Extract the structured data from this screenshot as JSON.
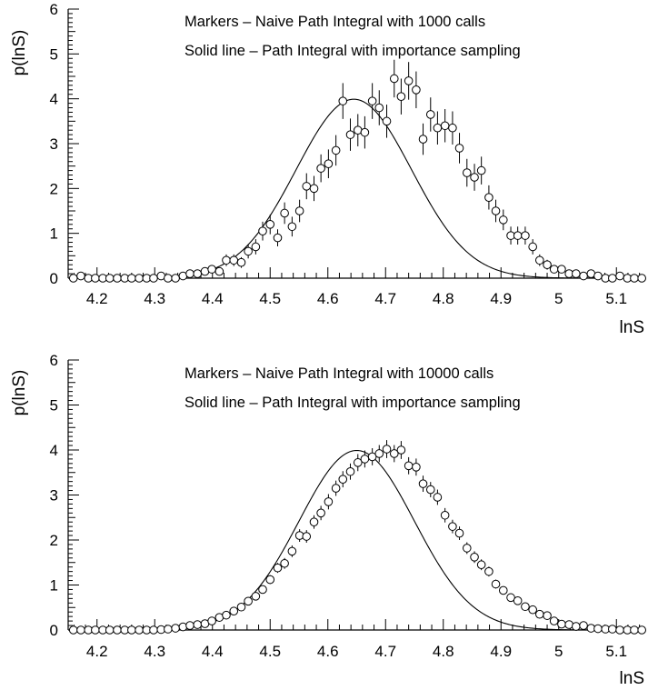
{
  "chart_data": [
    {
      "type": "scatter",
      "panel": "top",
      "xlabel": "lnS",
      "ylabel": "p(lnS)",
      "xlim": [
        4.15,
        5.15
      ],
      "ylim": [
        0,
        6
      ],
      "x_ticks": [
        "4.2",
        "4.3",
        "4.4",
        "4.5",
        "4.6",
        "4.7",
        "4.8",
        "4.9",
        "5",
        "5.1"
      ],
      "y_ticks": [
        "0",
        "1",
        "2",
        "3",
        "4",
        "5",
        "6"
      ],
      "annotations": [
        "Markers  –  Naive Path Integral with 1000 calls",
        "Solid line – Path Integral with importance sampling"
      ],
      "curve": {
        "type": "gaussian",
        "mean": 4.645,
        "sigma": 0.1,
        "peak": 3.99
      },
      "series": [
        {
          "style": "markers",
          "x": [
            4.159,
            4.172,
            4.185,
            4.197,
            4.21,
            4.222,
            4.235,
            4.248,
            4.26,
            4.273,
            4.286,
            4.298,
            4.311,
            4.323,
            4.336,
            4.349,
            4.361,
            4.374,
            4.387,
            4.399,
            4.412,
            4.424,
            4.437,
            4.45,
            4.462,
            4.475,
            4.487,
            4.5,
            4.513,
            4.525,
            4.538,
            4.551,
            4.563,
            4.576,
            4.588,
            4.601,
            4.614,
            4.626,
            4.639,
            4.652,
            4.664,
            4.677,
            4.689,
            4.702,
            4.715,
            4.727,
            4.74,
            4.753,
            4.765,
            4.778,
            4.79,
            4.803,
            4.816,
            4.828,
            4.841,
            4.854,
            4.866,
            4.879,
            4.891,
            4.904,
            4.917,
            4.929,
            4.942,
            4.955,
            4.967,
            4.98,
            4.992,
            5.005,
            5.018,
            5.03,
            5.043,
            5.056,
            5.068,
            5.081,
            5.093,
            5.106,
            5.119,
            5.131,
            5.144
          ],
          "y": [
            0.0,
            0.05,
            0.0,
            0.0,
            0.0,
            0.0,
            0.0,
            0.0,
            0.0,
            0.0,
            0.0,
            0.0,
            0.05,
            0.0,
            0.0,
            0.05,
            0.1,
            0.1,
            0.15,
            0.2,
            0.15,
            0.4,
            0.4,
            0.35,
            0.6,
            0.7,
            1.05,
            1.2,
            0.9,
            1.45,
            1.15,
            1.5,
            2.05,
            2.0,
            2.45,
            2.55,
            2.85,
            3.95,
            3.2,
            3.3,
            3.25,
            3.95,
            3.8,
            3.5,
            4.45,
            4.05,
            4.4,
            4.2,
            3.1,
            3.65,
            3.35,
            3.4,
            3.35,
            2.9,
            2.35,
            2.25,
            2.4,
            1.8,
            1.5,
            1.3,
            0.95,
            0.95,
            0.95,
            0.7,
            0.4,
            0.3,
            0.2,
            0.2,
            0.1,
            0.1,
            0.05,
            0.1,
            0.05,
            0.0,
            0.0,
            0.05,
            0.0,
            0.0,
            0.0
          ],
          "errors": [
            0.02,
            0.05,
            0.02,
            0.02,
            0.02,
            0.02,
            0.02,
            0.02,
            0.02,
            0.02,
            0.02,
            0.02,
            0.05,
            0.02,
            0.02,
            0.05,
            0.07,
            0.07,
            0.08,
            0.09,
            0.08,
            0.13,
            0.13,
            0.12,
            0.16,
            0.17,
            0.21,
            0.22,
            0.19,
            0.24,
            0.22,
            0.25,
            0.29,
            0.28,
            0.31,
            0.32,
            0.34,
            0.4,
            0.36,
            0.36,
            0.36,
            0.4,
            0.39,
            0.37,
            0.42,
            0.4,
            0.42,
            0.41,
            0.35,
            0.38,
            0.37,
            0.37,
            0.37,
            0.34,
            0.31,
            0.3,
            0.31,
            0.27,
            0.25,
            0.23,
            0.2,
            0.2,
            0.2,
            0.17,
            0.13,
            0.11,
            0.09,
            0.09,
            0.07,
            0.07,
            0.05,
            0.07,
            0.05,
            0.02,
            0.02,
            0.05,
            0.02,
            0.02,
            0.02
          ]
        }
      ]
    },
    {
      "type": "scatter",
      "panel": "bottom",
      "xlabel": "lnS",
      "ylabel": "p(lnS)",
      "xlim": [
        4.15,
        5.15
      ],
      "ylim": [
        0,
        6
      ],
      "x_ticks": [
        "4.2",
        "4.3",
        "4.4",
        "4.5",
        "4.6",
        "4.7",
        "4.8",
        "4.9",
        "5",
        "5.1"
      ],
      "y_ticks": [
        "0",
        "1",
        "2",
        "3",
        "4",
        "5",
        "6"
      ],
      "annotations": [
        "Markers  –  Naive Path Integral with 10000 calls",
        "Solid line – Path Integral with importance sampling"
      ],
      "curve": {
        "type": "gaussian",
        "mean": 4.65,
        "sigma": 0.1,
        "peak": 3.99
      },
      "series": [
        {
          "style": "markers",
          "x": [
            4.159,
            4.172,
            4.185,
            4.197,
            4.21,
            4.222,
            4.235,
            4.248,
            4.26,
            4.273,
            4.286,
            4.298,
            4.311,
            4.323,
            4.336,
            4.349,
            4.361,
            4.374,
            4.387,
            4.399,
            4.412,
            4.424,
            4.437,
            4.45,
            4.462,
            4.475,
            4.487,
            4.5,
            4.513,
            4.525,
            4.538,
            4.551,
            4.563,
            4.576,
            4.588,
            4.601,
            4.614,
            4.626,
            4.639,
            4.652,
            4.664,
            4.677,
            4.689,
            4.702,
            4.715,
            4.727,
            4.74,
            4.753,
            4.765,
            4.778,
            4.79,
            4.803,
            4.816,
            4.828,
            4.841,
            4.854,
            4.866,
            4.879,
            4.891,
            4.904,
            4.917,
            4.929,
            4.942,
            4.955,
            4.967,
            4.98,
            4.992,
            5.005,
            5.018,
            5.03,
            5.043,
            5.056,
            5.068,
            5.081,
            5.093,
            5.106,
            5.119,
            5.131,
            5.144
          ],
          "y": [
            0.0,
            0.0,
            0.0,
            0.0,
            0.0,
            0.0,
            0.0,
            0.0,
            0.0,
            0.0,
            0.0,
            0.0,
            0.01,
            0.02,
            0.04,
            0.07,
            0.1,
            0.12,
            0.14,
            0.2,
            0.28,
            0.33,
            0.42,
            0.51,
            0.64,
            0.75,
            0.9,
            1.12,
            1.38,
            1.48,
            1.75,
            2.1,
            2.08,
            2.4,
            2.6,
            2.85,
            3.15,
            3.35,
            3.52,
            3.72,
            3.8,
            3.85,
            3.92,
            4.02,
            3.92,
            4.0,
            3.65,
            3.62,
            3.25,
            3.12,
            2.95,
            2.55,
            2.3,
            2.15,
            1.82,
            1.62,
            1.45,
            1.3,
            1.02,
            0.88,
            0.72,
            0.65,
            0.52,
            0.45,
            0.35,
            0.32,
            0.2,
            0.13,
            0.12,
            0.08,
            0.1,
            0.04,
            0.03,
            0.02,
            0.02,
            0.0,
            0.0,
            0.0,
            0.0
          ],
          "errors": [
            0.0,
            0.0,
            0.0,
            0.0,
            0.0,
            0.0,
            0.0,
            0.0,
            0.0,
            0.0,
            0.0,
            0.0,
            0.01,
            0.02,
            0.02,
            0.03,
            0.03,
            0.04,
            0.04,
            0.04,
            0.05,
            0.06,
            0.06,
            0.07,
            0.08,
            0.08,
            0.09,
            0.1,
            0.11,
            0.12,
            0.13,
            0.14,
            0.14,
            0.15,
            0.16,
            0.17,
            0.17,
            0.18,
            0.18,
            0.19,
            0.19,
            0.19,
            0.19,
            0.2,
            0.19,
            0.2,
            0.19,
            0.19,
            0.18,
            0.17,
            0.17,
            0.16,
            0.15,
            0.15,
            0.13,
            0.13,
            0.12,
            0.11,
            0.1,
            0.09,
            0.08,
            0.08,
            0.07,
            0.07,
            0.06,
            0.06,
            0.04,
            0.04,
            0.04,
            0.03,
            0.03,
            0.02,
            0.02,
            0.01,
            0.01,
            0.0,
            0.0,
            0.0,
            0.0
          ]
        }
      ]
    }
  ]
}
